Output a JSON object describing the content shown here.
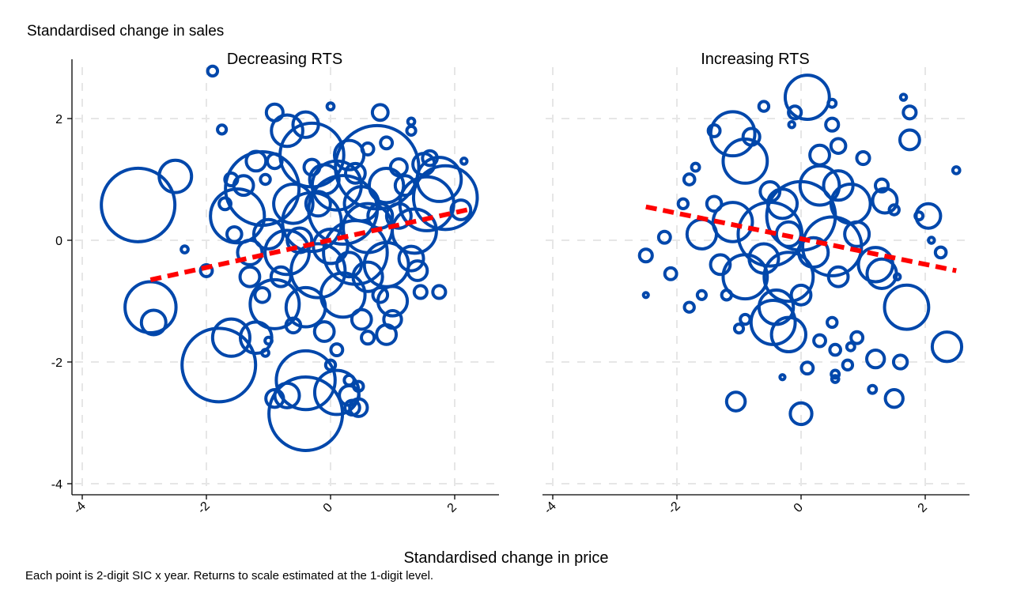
{
  "y_title": "Standardised change in sales",
  "x_title": "Standardised change in price",
  "note": "Each point is 2-digit SIC x year. Returns to scale estimated at the 1-digit level.",
  "colors": {
    "marker": "#0047AB",
    "fit": "#FF0000",
    "grid": "#E6E6E6",
    "axis": "#000000"
  },
  "chart_data": [
    {
      "type": "scatter",
      "title": "Decreasing RTS",
      "xlim": [
        -4,
        2.7
      ],
      "ylim": [
        -4.2,
        2.9
      ],
      "xticks": [
        -4,
        -2,
        0,
        2
      ],
      "yticks": [
        -4,
        -2,
        0,
        2
      ],
      "fit_line": {
        "x": [
          -2.9,
          2.2
        ],
        "y": [
          -0.65,
          0.5
        ]
      },
      "points": [
        {
          "x": -1.9,
          "y": 2.78,
          "r": 1
        },
        {
          "x": -1.75,
          "y": 1.82,
          "r": 0.9
        },
        {
          "x": -0.9,
          "y": 2.1,
          "r": 1.7
        },
        {
          "x": 0.0,
          "y": 2.2,
          "r": 0.7
        },
        {
          "x": 0.8,
          "y": 2.1,
          "r": 1.6
        },
        {
          "x": 1.3,
          "y": 1.95,
          "r": 0.7
        },
        {
          "x": -0.4,
          "y": 1.9,
          "r": 2.6
        },
        {
          "x": -0.7,
          "y": 1.8,
          "r": 3.2
        },
        {
          "x": -3.1,
          "y": 0.58,
          "r": 7.5
        },
        {
          "x": -2.5,
          "y": 1.05,
          "r": 3.3
        },
        {
          "x": -2.35,
          "y": -0.15,
          "r": 0.7
        },
        {
          "x": -2.9,
          "y": -1.1,
          "r": 5.2
        },
        {
          "x": -2.85,
          "y": -1.35,
          "r": 2.5
        },
        {
          "x": -1.8,
          "y": -2.05,
          "r": 7.5
        },
        {
          "x": -1.6,
          "y": -1.6,
          "r": 3.8
        },
        {
          "x": -1.2,
          "y": -1.6,
          "r": 3.2
        },
        {
          "x": -1.05,
          "y": -1.85,
          "r": 0.7
        },
        {
          "x": -1.0,
          "y": -1.65,
          "r": 0.7
        },
        {
          "x": -1.5,
          "y": 0.4,
          "r": 5.5
        },
        {
          "x": -1.1,
          "y": 0.85,
          "r": 7.5
        },
        {
          "x": -0.3,
          "y": 1.4,
          "r": 6.5
        },
        {
          "x": 0.75,
          "y": 1.2,
          "r": 8.5
        },
        {
          "x": 1.75,
          "y": 1.0,
          "r": 4.5
        },
        {
          "x": 1.85,
          "y": 0.7,
          "r": 6.5
        },
        {
          "x": 1.35,
          "y": 0.15,
          "r": 4.5
        },
        {
          "x": 1.5,
          "y": 1.25,
          "r": 2.2
        },
        {
          "x": 1.55,
          "y": 0.6,
          "r": 5.5
        },
        {
          "x": 2.1,
          "y": 0.5,
          "r": 2
        },
        {
          "x": 2.15,
          "y": 1.3,
          "r": 0.6
        },
        {
          "x": 0.2,
          "y": 0.5,
          "r": 7
        },
        {
          "x": -0.3,
          "y": 0.3,
          "r": 6
        },
        {
          "x": 0.4,
          "y": -0.2,
          "r": 6.5
        },
        {
          "x": -0.2,
          "y": -0.5,
          "r": 5.5
        },
        {
          "x": 0.6,
          "y": 0.2,
          "r": 5
        },
        {
          "x": -0.7,
          "y": -0.2,
          "r": 4.5
        },
        {
          "x": 0.1,
          "y": 0.9,
          "r": 5
        },
        {
          "x": 0.9,
          "y": -0.4,
          "r": 4.5
        },
        {
          "x": -0.6,
          "y": 0.6,
          "r": 4
        },
        {
          "x": -1.0,
          "y": 0.1,
          "r": 3
        },
        {
          "x": 0.5,
          "y": 0.6,
          "r": 3.5
        },
        {
          "x": -0.4,
          "y": -1.1,
          "r": 4
        },
        {
          "x": 0.2,
          "y": -0.9,
          "r": 4.5
        },
        {
          "x": 0.9,
          "y": 0.9,
          "r": 3.5
        },
        {
          "x": -0.9,
          "y": -1.05,
          "r": 5
        },
        {
          "x": 1.0,
          "y": -1.0,
          "r": 3
        },
        {
          "x": 0.3,
          "y": 1.4,
          "r": 3
        },
        {
          "x": -0.1,
          "y": 1.0,
          "r": 3
        },
        {
          "x": -1.3,
          "y": -0.2,
          "r": 2.5
        },
        {
          "x": 1.3,
          "y": -0.3,
          "r": 2.5
        },
        {
          "x": 1.1,
          "y": 0.4,
          "r": 2.5
        },
        {
          "x": 0.0,
          "y": -0.1,
          "r": 3.5
        },
        {
          "x": -0.2,
          "y": 0.6,
          "r": 2.5
        },
        {
          "x": 0.6,
          "y": -0.6,
          "r": 3
        },
        {
          "x": 0.3,
          "y": -0.4,
          "r": 2.5
        },
        {
          "x": -0.5,
          "y": 0.0,
          "r": 2.5
        },
        {
          "x": 0.8,
          "y": 0.4,
          "r": 2.5
        },
        {
          "x": -1.4,
          "y": 0.9,
          "r": 2
        },
        {
          "x": -1.2,
          "y": 1.3,
          "r": 2
        },
        {
          "x": -1.55,
          "y": 0.1,
          "r": 1.5
        },
        {
          "x": -1.6,
          "y": 1.0,
          "r": 1.3
        },
        {
          "x": -1.3,
          "y": -0.6,
          "r": 2
        },
        {
          "x": -0.8,
          "y": -0.6,
          "r": 2
        },
        {
          "x": -0.1,
          "y": -1.5,
          "r": 2
        },
        {
          "x": 0.5,
          "y": -1.3,
          "r": 2
        },
        {
          "x": 1.0,
          "y": -1.3,
          "r": 1.8
        },
        {
          "x": 1.4,
          "y": -0.5,
          "r": 2
        },
        {
          "x": 1.45,
          "y": -0.85,
          "r": 1.3
        },
        {
          "x": 1.2,
          "y": 0.9,
          "r": 2
        },
        {
          "x": 1.1,
          "y": 1.2,
          "r": 1.7
        },
        {
          "x": 0.4,
          "y": 1.1,
          "r": 2
        },
        {
          "x": -0.3,
          "y": 1.2,
          "r": 1.6
        },
        {
          "x": 0.9,
          "y": 1.6,
          "r": 1.2
        },
        {
          "x": -0.9,
          "y": 1.3,
          "r": 1.5
        },
        {
          "x": 0.6,
          "y": 1.5,
          "r": 1.2
        },
        {
          "x": -1.7,
          "y": 0.6,
          "r": 1.2
        },
        {
          "x": -2.0,
          "y": -0.5,
          "r": 1.2
        },
        {
          "x": -1.1,
          "y": -0.9,
          "r": 1.5
        },
        {
          "x": -0.6,
          "y": -1.4,
          "r": 1.5
        },
        {
          "x": 0.1,
          "y": -1.8,
          "r": 1.2
        },
        {
          "x": 0.6,
          "y": -1.6,
          "r": 1.3
        },
        {
          "x": 0.9,
          "y": -1.55,
          "r": 2
        },
        {
          "x": -0.4,
          "y": -2.3,
          "r": 6
        },
        {
          "x": -0.7,
          "y": -2.55,
          "r": 2.5
        },
        {
          "x": -0.9,
          "y": -2.6,
          "r": 1.8
        },
        {
          "x": -0.4,
          "y": -2.85,
          "r": 7.5
        },
        {
          "x": 0.1,
          "y": -2.5,
          "r": 4.5
        },
        {
          "x": 0.3,
          "y": -2.55,
          "r": 2
        },
        {
          "x": 0.35,
          "y": -2.75,
          "r": 1.5
        },
        {
          "x": 0.45,
          "y": -2.75,
          "r": 1.8
        },
        {
          "x": 0.45,
          "y": -2.4,
          "r": 1
        },
        {
          "x": 0.3,
          "y": -2.3,
          "r": 1
        },
        {
          "x": 0.0,
          "y": -2.05,
          "r": 1
        },
        {
          "x": 1.75,
          "y": -0.85,
          "r": 1.3
        },
        {
          "x": 1.6,
          "y": 1.35,
          "r": 1.5
        },
        {
          "x": 1.3,
          "y": 1.8,
          "r": 0.9
        },
        {
          "x": -1.05,
          "y": 1.0,
          "r": 1
        },
        {
          "x": 0.8,
          "y": -0.9,
          "r": 1.5
        }
      ]
    },
    {
      "type": "scatter",
      "title": "Increasing RTS",
      "xlim": [
        -4,
        2.7
      ],
      "ylim": [
        -4.2,
        2.9
      ],
      "xticks": [
        -4,
        -2,
        0,
        2
      ],
      "yticks": [
        -4,
        -2,
        0,
        2
      ],
      "fit_line": {
        "x": [
          -2.5,
          2.5
        ],
        "y": [
          0.55,
          -0.5
        ]
      },
      "points": [
        {
          "x": 0.1,
          "y": 2.35,
          "r": 4.5
        },
        {
          "x": 0.5,
          "y": 2.25,
          "r": 0.8
        },
        {
          "x": -0.6,
          "y": 2.2,
          "r": 1
        },
        {
          "x": -0.1,
          "y": 2.1,
          "r": 1.3
        },
        {
          "x": 0.5,
          "y": 1.9,
          "r": 1.3
        },
        {
          "x": -0.15,
          "y": 1.9,
          "r": 0.6
        },
        {
          "x": -1.1,
          "y": 1.75,
          "r": 4.5
        },
        {
          "x": -1.4,
          "y": 1.8,
          "r": 1.2
        },
        {
          "x": -0.8,
          "y": 1.7,
          "r": 1.7
        },
        {
          "x": 0.6,
          "y": 1.55,
          "r": 1.5
        },
        {
          "x": 0.3,
          "y": 1.4,
          "r": 2
        },
        {
          "x": -0.9,
          "y": 1.3,
          "r": 4.5
        },
        {
          "x": -1.7,
          "y": 1.2,
          "r": 0.8
        },
        {
          "x": -1.8,
          "y": 1.0,
          "r": 1.1
        },
        {
          "x": 1.0,
          "y": 1.35,
          "r": 1.3
        },
        {
          "x": 1.65,
          "y": 2.35,
          "r": 0.6
        },
        {
          "x": 1.75,
          "y": 2.1,
          "r": 1.3
        },
        {
          "x": 1.75,
          "y": 1.65,
          "r": 2
        },
        {
          "x": 2.5,
          "y": 1.15,
          "r": 0.7
        },
        {
          "x": 2.05,
          "y": 0.4,
          "r": 2.5
        },
        {
          "x": 2.1,
          "y": 0.0,
          "r": 0.6
        },
        {
          "x": 2.25,
          "y": -0.2,
          "r": 1.1
        },
        {
          "x": 1.3,
          "y": 0.9,
          "r": 1.3
        },
        {
          "x": 1.35,
          "y": 0.65,
          "r": 2.5
        },
        {
          "x": 0.0,
          "y": 0.4,
          "r": 7
        },
        {
          "x": -0.5,
          "y": 0.1,
          "r": 6.5
        },
        {
          "x": 0.5,
          "y": -0.1,
          "r": 6
        },
        {
          "x": -0.2,
          "y": -0.6,
          "r": 5
        },
        {
          "x": 0.8,
          "y": 0.6,
          "r": 4
        },
        {
          "x": -1.1,
          "y": 0.3,
          "r": 4
        },
        {
          "x": -0.9,
          "y": -0.6,
          "r": 4.5
        },
        {
          "x": 0.3,
          "y": 0.9,
          "r": 4
        },
        {
          "x": 1.2,
          "y": -0.4,
          "r": 3.5
        },
        {
          "x": -1.6,
          "y": 0.1,
          "r": 3
        },
        {
          "x": 0.6,
          "y": 0.9,
          "r": 3
        },
        {
          "x": -0.3,
          "y": 0.6,
          "r": 3
        },
        {
          "x": 0.2,
          "y": -0.2,
          "r": 3
        },
        {
          "x": -0.6,
          "y": -0.3,
          "r": 3
        },
        {
          "x": 0.9,
          "y": 0.1,
          "r": 2.5
        },
        {
          "x": -0.4,
          "y": -1.1,
          "r": 3.5
        },
        {
          "x": -0.45,
          "y": -1.35,
          "r": 4.5
        },
        {
          "x": -0.2,
          "y": -1.55,
          "r": 3.5
        },
        {
          "x": 1.7,
          "y": -1.1,
          "r": 4.5
        },
        {
          "x": 1.3,
          "y": -0.55,
          "r": 3
        },
        {
          "x": 2.35,
          "y": -1.75,
          "r": 3
        },
        {
          "x": -1.3,
          "y": -0.4,
          "r": 2
        },
        {
          "x": -1.4,
          "y": 0.6,
          "r": 1.5
        },
        {
          "x": -1.9,
          "y": 0.6,
          "r": 1
        },
        {
          "x": -2.2,
          "y": 0.05,
          "r": 1.2
        },
        {
          "x": -2.5,
          "y": -0.25,
          "r": 1.3
        },
        {
          "x": -2.1,
          "y": -0.55,
          "r": 1.2
        },
        {
          "x": -2.5,
          "y": -0.9,
          "r": 0.5
        },
        {
          "x": -1.8,
          "y": -1.1,
          "r": 1
        },
        {
          "x": -1.6,
          "y": -0.9,
          "r": 0.9
        },
        {
          "x": -1.2,
          "y": -0.9,
          "r": 1
        },
        {
          "x": -0.9,
          "y": -1.3,
          "r": 1
        },
        {
          "x": -1.0,
          "y": -1.45,
          "r": 0.9
        },
        {
          "x": 0.5,
          "y": -1.35,
          "r": 1
        },
        {
          "x": 0.3,
          "y": -1.65,
          "r": 1.2
        },
        {
          "x": 0.55,
          "y": -1.8,
          "r": 1.1
        },
        {
          "x": 0.8,
          "y": -1.75,
          "r": 0.8
        },
        {
          "x": 0.9,
          "y": -1.6,
          "r": 1.2
        },
        {
          "x": 1.2,
          "y": -1.95,
          "r": 1.8
        },
        {
          "x": 1.6,
          "y": -2.0,
          "r": 1.4
        },
        {
          "x": 0.75,
          "y": -2.05,
          "r": 1
        },
        {
          "x": 0.55,
          "y": -2.2,
          "r": 0.8
        },
        {
          "x": 0.55,
          "y": -2.28,
          "r": 0.7
        },
        {
          "x": 0.1,
          "y": -2.1,
          "r": 1.2
        },
        {
          "x": 1.15,
          "y": -2.45,
          "r": 0.8
        },
        {
          "x": 1.5,
          "y": -2.6,
          "r": 1.8
        },
        {
          "x": -1.05,
          "y": -2.65,
          "r": 1.9
        },
        {
          "x": 0.0,
          "y": -2.85,
          "r": 2.2
        },
        {
          "x": -0.3,
          "y": -2.25,
          "r": 0.5
        },
        {
          "x": 1.55,
          "y": -0.6,
          "r": 0.6
        },
        {
          "x": 1.5,
          "y": 0.5,
          "r": 1
        },
        {
          "x": 1.9,
          "y": 0.4,
          "r": 0.8
        },
        {
          "x": -0.5,
          "y": 0.8,
          "r": 2
        },
        {
          "x": 0.0,
          "y": -0.9,
          "r": 2
        },
        {
          "x": 0.6,
          "y": -0.6,
          "r": 2
        },
        {
          "x": -0.2,
          "y": 0.1,
          "r": 2.5
        }
      ]
    }
  ]
}
